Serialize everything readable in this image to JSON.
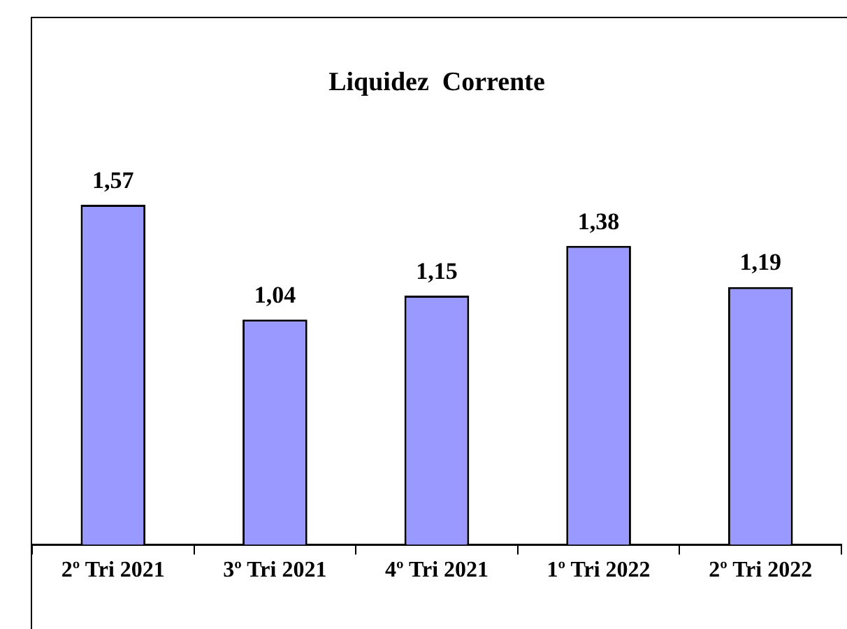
{
  "chart_data": {
    "type": "bar",
    "title": "Liquidez  Corrente",
    "categories": [
      "2º Tri 2021",
      "3º Tri 2021",
      "4º Tri 2021",
      "1º Tri 2022",
      "2º Tri 2022"
    ],
    "values": [
      1.57,
      1.04,
      1.15,
      1.38,
      1.19
    ],
    "value_labels": [
      "1,57",
      "1,04",
      "1,15",
      "1,38",
      "1,19"
    ],
    "color": "#9999ff",
    "grid": false,
    "legend": false
  }
}
